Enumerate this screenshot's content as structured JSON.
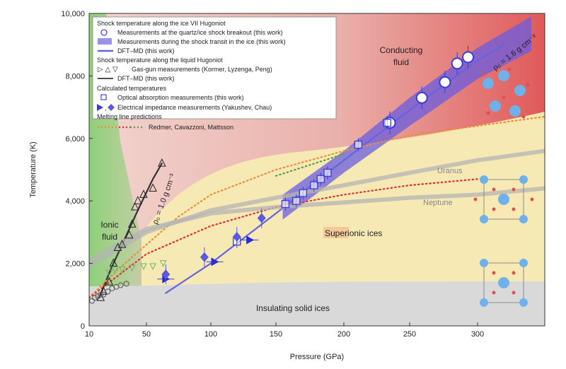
{
  "chart_data": {
    "type": "scatter",
    "xlabel": "Pressure (GPa)",
    "ylabel": "Temperature (K)",
    "xlim": [
      10,
      350
    ],
    "ylim": [
      0,
      10000
    ],
    "x_ticks": [
      10,
      50,
      100,
      150,
      200,
      250,
      300
    ],
    "x_tick_labels": [
      "10",
      "50",
      "100",
      "150",
      "200",
      "250",
      "300"
    ],
    "y_ticks": [
      0,
      2000,
      4000,
      6000,
      8000,
      10000
    ],
    "y_tick_labels": [
      "0",
      "2,000",
      "4,000",
      "6,000",
      "8,000",
      "10,000"
    ],
    "legend_placement": "top-left",
    "legend": {
      "heading1": "Shock temperature along the ice VII Hugoniot",
      "item1": "Measurements at the quartz/ice shock breakout (this work)",
      "item2": "Measurements during the shock transit in the ice (this work)",
      "item3": "DFT–MD (this work)",
      "heading2": "Shock temperature along the liquid Hugoniot",
      "item4": "Gas-gun measurements (Kormer, Lyzenga, Peng)",
      "item5": "DFT–MD (this work)",
      "heading3": "Calculated temperatures",
      "item6": "Optical absorption measurements (this work)",
      "item7": "Electrical impedance measurements (Yakushev, Chau)",
      "heading4": "Melting line predictions",
      "item8": "Redmer, Cavazzoni, Mattsson"
    },
    "annotations": {
      "conducting_fluid": [
        "Conducting",
        "fluid"
      ],
      "ionic_fluid": [
        "Ionic",
        "fluid"
      ],
      "superionic": "Superionic ices",
      "insulating": "Insulating solid ices",
      "uranus": "Uranus",
      "neptune": "Neptune",
      "rho_liquid": "ρ₀ = 1.0 g cm⁻³",
      "rho_ice": "ρ₀ = 1.6 g cm⁻³"
    },
    "series": [
      {
        "name": "Measurements at the quartz/ice shock breakout (this work)",
        "marker": "circle-white",
        "points": [
          [
            235,
            6500
          ],
          [
            259,
            7300
          ],
          [
            276,
            7800
          ],
          [
            285,
            8400
          ],
          [
            293,
            8600
          ]
        ]
      },
      {
        "name": "Optical absorption measurements (this work)",
        "marker": "square-open",
        "points": [
          [
            120,
            2700
          ],
          [
            157,
            3900
          ],
          [
            165,
            4000
          ],
          [
            170,
            4250
          ],
          [
            178,
            4500
          ],
          [
            183,
            4700
          ],
          [
            188,
            4900
          ],
          [
            211,
            5800
          ],
          [
            233,
            6500
          ]
        ]
      },
      {
        "name": "Electrical impedance measurements (Yakushev, Chau)",
        "marker": "triangle-right-blue",
        "points": [
          [
            65,
            1500
          ],
          [
            103,
            2050
          ],
          [
            130,
            2750
          ]
        ]
      },
      {
        "name": "Electrical impedance measurements (Yakushev, Chau) diamonds",
        "marker": "diamond-blue",
        "points": [
          [
            65,
            1650
          ],
          [
            95,
            2200
          ],
          [
            120,
            2850
          ],
          [
            139,
            3450
          ]
        ]
      },
      {
        "name": "Gas-gun measurements (Kormer, Lyzenga, Peng)",
        "marker": "triangle-open",
        "points": [
          [
            18,
            900
          ],
          [
            20,
            1100
          ],
          [
            24,
            1400
          ],
          [
            27,
            2000
          ],
          [
            30,
            2500
          ],
          [
            33,
            2600
          ],
          [
            38,
            2900
          ],
          [
            40,
            3250
          ],
          [
            42,
            3800
          ],
          [
            44,
            4000
          ],
          [
            48,
            4200
          ],
          [
            55,
            4400
          ],
          [
            62,
            5200
          ]
        ]
      },
      {
        "name": "Hugoniot points (low pressure)",
        "marker": "circle-open-grey",
        "points": [
          [
            12,
            800
          ],
          [
            14,
            900
          ],
          [
            16,
            950
          ],
          [
            18,
            1000
          ],
          [
            20,
            1000
          ],
          [
            23,
            1100
          ],
          [
            26,
            1200
          ],
          [
            29,
            1250
          ],
          [
            32,
            1300
          ],
          [
            36,
            1350
          ]
        ]
      },
      {
        "name": "Extra points (green triangles)",
        "marker": "triangle-down-open-green",
        "points": [
          [
            24,
            1700
          ],
          [
            28,
            1800
          ],
          [
            33,
            1800
          ],
          [
            40,
            1850
          ],
          [
            48,
            1900
          ],
          [
            55,
            1900
          ],
          [
            63,
            2000
          ]
        ]
      }
    ],
    "lines": [
      {
        "name": "DFT–MD (this work) ice VII Hugoniot",
        "color": "#6464dc",
        "points": [
          [
            65,
            1050
          ],
          [
            100,
            2000
          ],
          [
            150,
            3600
          ],
          [
            200,
            5300
          ],
          [
            250,
            6900
          ],
          [
            300,
            8500
          ],
          [
            320,
            9000
          ]
        ]
      },
      {
        "name": "DFT–MD (this work) liquid Hugoniot",
        "color": "#333333",
        "points": [
          [
            17,
            900
          ],
          [
            25,
            1800
          ],
          [
            35,
            2800
          ],
          [
            45,
            3800
          ],
          [
            55,
            4700
          ],
          [
            62,
            5200
          ]
        ]
      },
      {
        "name": "Melting line (Redmer)",
        "color": "#f08c32",
        "style": "dotted",
        "points": [
          [
            10,
            900
          ],
          [
            30,
            1800
          ],
          [
            50,
            2600
          ],
          [
            75,
            3500
          ],
          [
            100,
            4200
          ],
          [
            150,
            5000
          ],
          [
            200,
            5600
          ],
          [
            250,
            6100
          ],
          [
            300,
            6400
          ],
          [
            350,
            6700
          ]
        ]
      },
      {
        "name": "Melting line (Cavazzoni)",
        "color": "#e03030",
        "style": "dotted",
        "points": [
          [
            10,
            900
          ],
          [
            50,
            2300
          ],
          [
            100,
            3200
          ],
          [
            150,
            3800
          ],
          [
            200,
            4200
          ],
          [
            250,
            4500
          ],
          [
            300,
            4700
          ]
        ]
      },
      {
        "name": "Melting line (Mattsson)",
        "color": "#55a040",
        "style": "dotted",
        "points": [
          [
            150,
            4800
          ],
          [
            200,
            5500
          ]
        ]
      },
      {
        "name": "Uranus isentrope",
        "color": "#b4b4b4",
        "points": [
          [
            10,
            1900
          ],
          [
            50,
            3000
          ],
          [
            100,
            3700
          ],
          [
            150,
            4100
          ],
          [
            200,
            4500
          ],
          [
            250,
            4900
          ],
          [
            300,
            5300
          ],
          [
            350,
            5600
          ]
        ]
      },
      {
        "name": "Neptune isentrope",
        "color": "#b4b4b4",
        "points": [
          [
            10,
            2100
          ],
          [
            50,
            3100
          ],
          [
            100,
            3600
          ],
          [
            150,
            3800
          ],
          [
            200,
            3950
          ],
          [
            250,
            4100
          ],
          [
            300,
            4200
          ],
          [
            350,
            4400
          ]
        ]
      }
    ],
    "band": {
      "name": "Measurements during the shock transit in the ice (this work)",
      "upper": [
        [
          155,
          4200
        ],
        [
          200,
          5600
        ],
        [
          250,
          7300
        ],
        [
          300,
          8900
        ],
        [
          340,
          9900
        ]
      ],
      "lower": [
        [
          155,
          3400
        ],
        [
          200,
          4900
        ],
        [
          250,
          6400
        ],
        [
          300,
          7900
        ],
        [
          340,
          8800
        ]
      ]
    },
    "colors": {
      "ionic_green": "#8cd27a",
      "conducting_red": "#e05a5a",
      "superionic_yellow": "#f7e9b4",
      "insulating_grey": "#d8d8d8",
      "blue": "#4a48d8",
      "band": "#6a5ce0"
    }
  }
}
